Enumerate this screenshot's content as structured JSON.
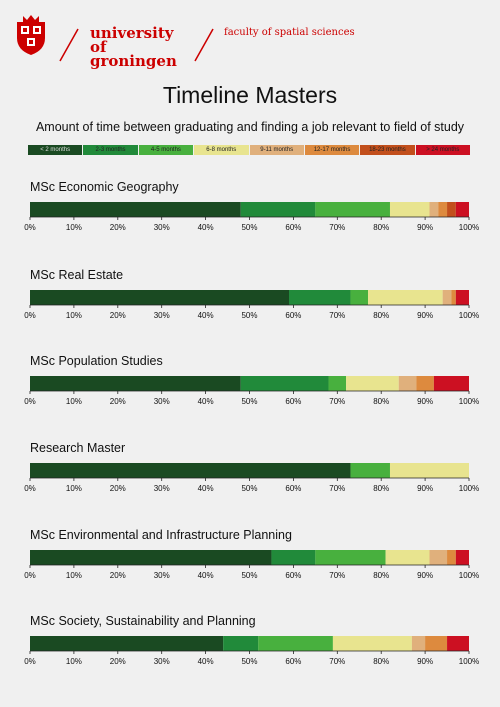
{
  "header": {
    "university_line1": "university of",
    "university_line2": "groningen",
    "faculty": "faculty of spatial sciences"
  },
  "title": "Timeline Masters",
  "subtitle": "Amount of time between graduating and finding a job relevant to field of study",
  "legend": [
    {
      "label": "< 2 months",
      "color": "#1a4a22"
    },
    {
      "label": "2-3 months",
      "color": "#218a3a"
    },
    {
      "label": "4-5 months",
      "color": "#48b03e"
    },
    {
      "label": "6-8 months",
      "color": "#e8e48f"
    },
    {
      "label": "9-11 months",
      "color": "#e0b07c"
    },
    {
      "label": "12-17 months",
      "color": "#dd8a3e"
    },
    {
      "label": "18-23 months",
      "color": "#c24f1c"
    },
    {
      "label": "> 24 months",
      "color": "#cc1022"
    }
  ],
  "chart_data": [
    {
      "type": "bar",
      "orientation": "horizontal-stacked",
      "title": "MSc Economic Geography",
      "values": [
        48,
        17,
        17,
        9,
        2,
        2,
        2,
        3
      ],
      "xlim": [
        0,
        100
      ],
      "ticks": [
        "0%",
        "10%",
        "20%",
        "30%",
        "40%",
        "50%",
        "60%",
        "70%",
        "80%",
        "90%",
        "100%"
      ]
    },
    {
      "type": "bar",
      "orientation": "horizontal-stacked",
      "title": "MSc Real Estate",
      "values": [
        59,
        14,
        4,
        17,
        2,
        1,
        0,
        3
      ],
      "xlim": [
        0,
        100
      ],
      "ticks": [
        "0%",
        "10%",
        "20%",
        "30%",
        "40%",
        "50%",
        "60%",
        "70%",
        "80%",
        "90%",
        "100%"
      ]
    },
    {
      "type": "bar",
      "orientation": "horizontal-stacked",
      "title": "MSc Population Studies",
      "values": [
        48,
        20,
        4,
        12,
        4,
        4,
        0,
        8
      ],
      "xlim": [
        0,
        100
      ],
      "ticks": [
        "0%",
        "10%",
        "20%",
        "30%",
        "40%",
        "50%",
        "60%",
        "70%",
        "80%",
        "90%",
        "100%"
      ]
    },
    {
      "type": "bar",
      "orientation": "horizontal-stacked",
      "title": "Research Master",
      "values": [
        73,
        0,
        9,
        18,
        0,
        0,
        0,
        0
      ],
      "xlim": [
        0,
        100
      ],
      "ticks": [
        "0%",
        "10%",
        "20%",
        "30%",
        "40%",
        "50%",
        "60%",
        "70%",
        "80%",
        "90%",
        "100%"
      ]
    },
    {
      "type": "bar",
      "orientation": "horizontal-stacked",
      "title": "MSc Environmental and Infrastructure Planning",
      "values": [
        55,
        10,
        16,
        10,
        4,
        2,
        0,
        3
      ],
      "xlim": [
        0,
        100
      ],
      "ticks": [
        "0%",
        "10%",
        "20%",
        "30%",
        "40%",
        "50%",
        "60%",
        "70%",
        "80%",
        "90%",
        "100%"
      ]
    },
    {
      "type": "bar",
      "orientation": "horizontal-stacked",
      "title": "MSc Society, Sustainability and Planning",
      "values": [
        44,
        8,
        17,
        18,
        3,
        5,
        0,
        5
      ],
      "xlim": [
        0,
        100
      ],
      "ticks": [
        "0%",
        "10%",
        "20%",
        "30%",
        "40%",
        "50%",
        "60%",
        "70%",
        "80%",
        "90%",
        "100%"
      ]
    }
  ]
}
